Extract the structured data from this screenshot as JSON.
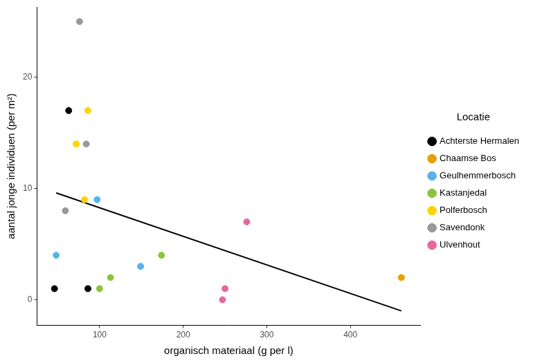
{
  "chart_data": {
    "type": "scatter",
    "x_label": "organisch materiaal (g per l)",
    "y_label": "aantal jonge individuen (per m²)",
    "legend_title": "Locatie",
    "legend": "right",
    "grid": false,
    "marker": "circle",
    "xlim": [
      25,
      484
    ],
    "xticks": [
      100,
      200,
      300,
      400
    ],
    "ylim": [
      -2.3,
      26.3
    ],
    "yticks": [
      0,
      10,
      20
    ],
    "series": [
      {
        "name": "Achterste Hermalen",
        "color": "#000000",
        "x": [
          46,
          63,
          86
        ],
        "values": [
          1,
          17,
          1
        ]
      },
      {
        "name": "Chaamse Bos",
        "color": "#E69F00",
        "x": [
          461
        ],
        "values": [
          2
        ]
      },
      {
        "name": "Geulhemmerbosch",
        "color": "#56B4E9",
        "x": [
          48,
          97,
          149
        ],
        "values": [
          4,
          9,
          3
        ]
      },
      {
        "name": "Kastanjedal",
        "color": "#8CC43C",
        "x": [
          100,
          113,
          174
        ],
        "values": [
          1,
          2,
          4
        ]
      },
      {
        "name": "Polferbosch",
        "color": "#FFD400",
        "x": [
          72,
          82,
          86
        ],
        "values": [
          14,
          9,
          17
        ]
      },
      {
        "name": "Savendonk",
        "color": "#999999",
        "x": [
          59,
          76,
          84
        ],
        "values": [
          8,
          25,
          14
        ]
      },
      {
        "name": "Ulvenhout",
        "color": "#E7679E",
        "x": [
          247,
          250,
          276
        ],
        "values": [
          0,
          1,
          7
        ]
      }
    ],
    "fit": {
      "type": "line",
      "color": "#000000",
      "line_style": "solid",
      "x": [
        48,
        461
      ],
      "values": [
        9.6,
        -1.0
      ]
    }
  }
}
